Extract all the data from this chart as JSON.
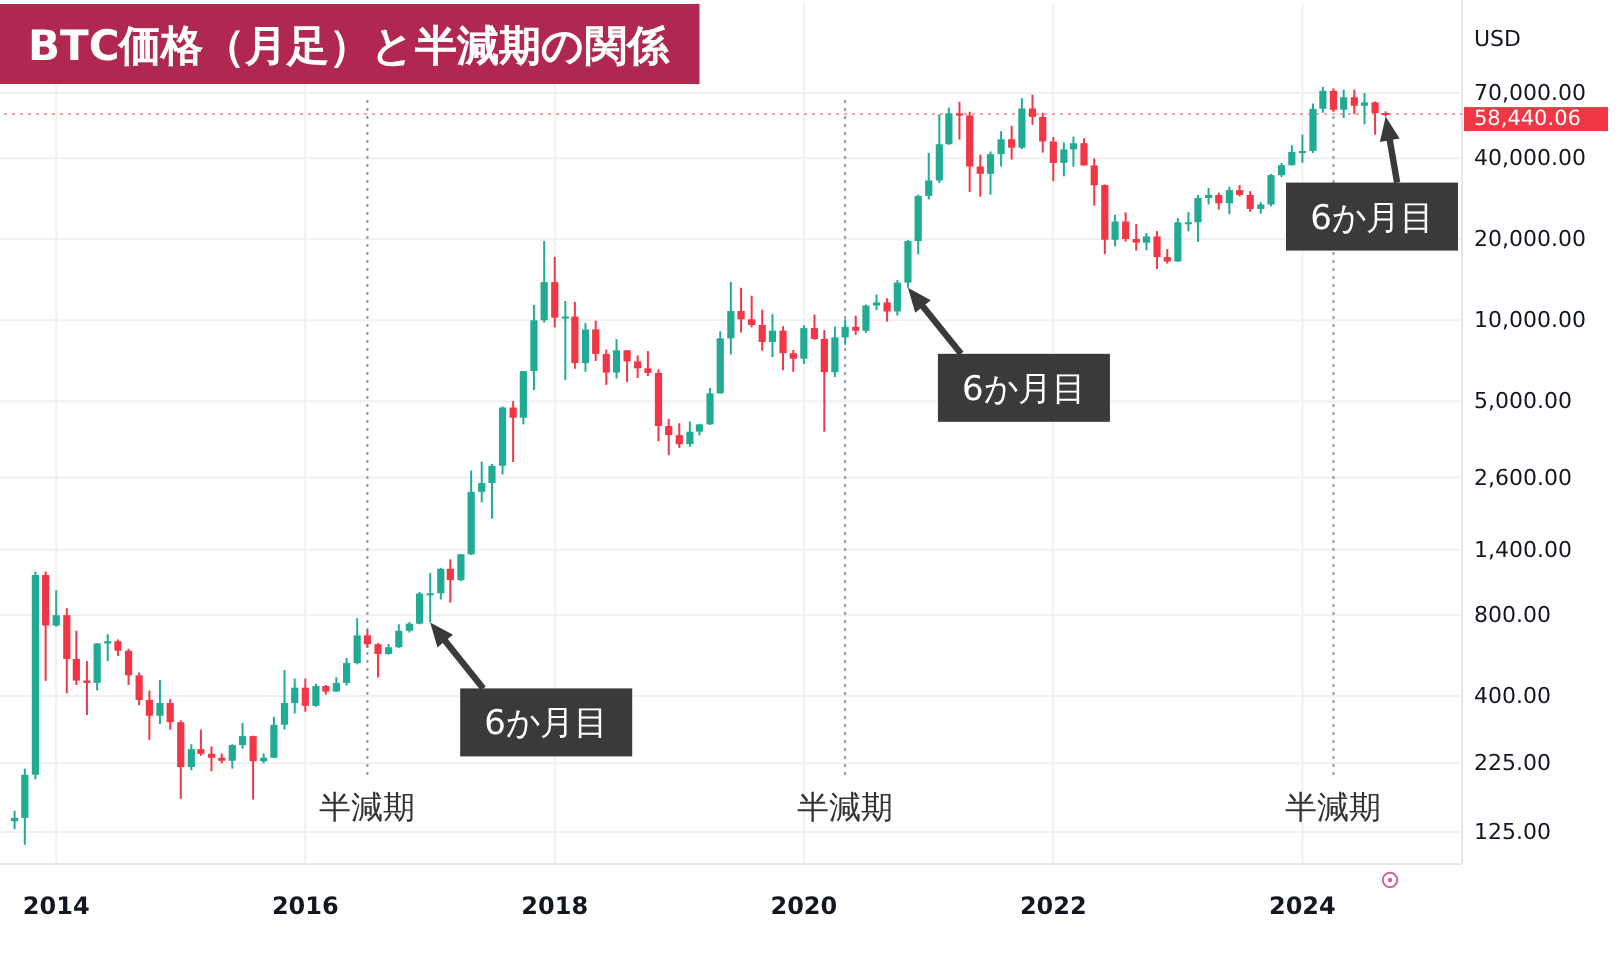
{
  "chart_data": {
    "type": "candlestick",
    "title": "BTC価格（月足）と半減期の関係",
    "ylabel": "USD",
    "x": [
      "2013-09",
      "2013-10",
      "2013-11",
      "2013-12",
      "2014-01",
      "2014-02",
      "2014-03",
      "2014-04",
      "2014-05",
      "2014-06",
      "2014-07",
      "2014-08",
      "2014-09",
      "2014-10",
      "2014-11",
      "2014-12",
      "2015-01",
      "2015-02",
      "2015-03",
      "2015-04",
      "2015-05",
      "2015-06",
      "2015-07",
      "2015-08",
      "2015-09",
      "2015-10",
      "2015-11",
      "2015-12",
      "2016-01",
      "2016-02",
      "2016-03",
      "2016-04",
      "2016-05",
      "2016-06",
      "2016-07",
      "2016-08",
      "2016-09",
      "2016-10",
      "2016-11",
      "2016-12",
      "2017-01",
      "2017-02",
      "2017-03",
      "2017-04",
      "2017-05",
      "2017-06",
      "2017-07",
      "2017-08",
      "2017-09",
      "2017-10",
      "2017-11",
      "2017-12",
      "2018-01",
      "2018-02",
      "2018-03",
      "2018-04",
      "2018-05",
      "2018-06",
      "2018-07",
      "2018-08",
      "2018-09",
      "2018-10",
      "2018-11",
      "2018-12",
      "2019-01",
      "2019-02",
      "2019-03",
      "2019-04",
      "2019-05",
      "2019-06",
      "2019-07",
      "2019-08",
      "2019-09",
      "2019-10",
      "2019-11",
      "2019-12",
      "2020-01",
      "2020-02",
      "2020-03",
      "2020-04",
      "2020-05",
      "2020-06",
      "2020-07",
      "2020-08",
      "2020-09",
      "2020-10",
      "2020-11",
      "2020-12",
      "2021-01",
      "2021-02",
      "2021-03",
      "2021-04",
      "2021-05",
      "2021-06",
      "2021-07",
      "2021-08",
      "2021-09",
      "2021-10",
      "2021-11",
      "2021-12",
      "2022-01",
      "2022-02",
      "2022-03",
      "2022-04",
      "2022-05",
      "2022-06",
      "2022-07",
      "2022-08",
      "2022-09",
      "2022-10",
      "2022-11",
      "2022-12",
      "2023-01",
      "2023-02",
      "2023-03",
      "2023-04",
      "2023-05",
      "2023-06",
      "2023-07",
      "2023-08",
      "2023-09",
      "2023-10",
      "2023-11",
      "2023-12",
      "2024-01",
      "2024-02",
      "2024-03",
      "2024-04",
      "2024-05",
      "2024-06",
      "2024-07",
      "2024-08",
      "2024-09"
    ],
    "ohlc": [
      [
        137,
        150,
        128,
        141
      ],
      [
        141,
        215,
        112,
        204
      ],
      [
        204,
        1163,
        196,
        1129
      ],
      [
        1129,
        1163,
        456,
        732
      ],
      [
        732,
        990,
        725,
        800
      ],
      [
        800,
        850,
        410,
        550
      ],
      [
        550,
        700,
        440,
        457
      ],
      [
        457,
        540,
        340,
        448
      ],
      [
        448,
        630,
        420,
        628
      ],
      [
        628,
        680,
        540,
        640
      ],
      [
        640,
        650,
        565,
        590
      ],
      [
        590,
        600,
        440,
        478
      ],
      [
        478,
        490,
        370,
        387
      ],
      [
        387,
        420,
        275,
        338
      ],
      [
        338,
        460,
        315,
        377
      ],
      [
        377,
        390,
        300,
        320
      ],
      [
        320,
        325,
        166,
        218
      ],
      [
        218,
        265,
        212,
        254
      ],
      [
        254,
        300,
        240,
        244
      ],
      [
        244,
        260,
        210,
        236
      ],
      [
        236,
        245,
        225,
        230
      ],
      [
        230,
        265,
        215,
        263
      ],
      [
        263,
        318,
        255,
        284
      ],
      [
        284,
        285,
        165,
        229
      ],
      [
        229,
        245,
        225,
        236
      ],
      [
        236,
        335,
        235,
        313
      ],
      [
        313,
        500,
        300,
        377
      ],
      [
        377,
        465,
        345,
        430
      ],
      [
        430,
        465,
        350,
        368
      ],
      [
        368,
        445,
        365,
        436
      ],
      [
        436,
        440,
        405,
        416
      ],
      [
        416,
        470,
        415,
        448
      ],
      [
        448,
        555,
        438,
        531
      ],
      [
        531,
        780,
        525,
        673
      ],
      [
        673,
        705,
        605,
        624
      ],
      [
        624,
        630,
        470,
        574
      ],
      [
        574,
        625,
        570,
        608
      ],
      [
        608,
        740,
        605,
        700
      ],
      [
        700,
        755,
        690,
        744
      ],
      [
        744,
        975,
        740,
        963
      ],
      [
        963,
        1150,
        752,
        965
      ],
      [
        965,
        1200,
        915,
        1190
      ],
      [
        1190,
        1290,
        890,
        1080
      ],
      [
        1080,
        1350,
        1070,
        1348
      ],
      [
        1348,
        2760,
        1340,
        2300
      ],
      [
        2300,
        2980,
        2100,
        2480
      ],
      [
        2480,
        2920,
        1830,
        2875
      ],
      [
        2875,
        4780,
        2670,
        4735
      ],
      [
        4735,
        5000,
        2970,
        4340
      ],
      [
        4340,
        6480,
        4100,
        6470
      ],
      [
        6470,
        11400,
        5500,
        10000
      ],
      [
        10000,
        19700,
        9800,
        13860
      ],
      [
        13860,
        17200,
        9400,
        10220
      ],
      [
        10220,
        11790,
        6000,
        10320
      ],
      [
        10320,
        11700,
        6600,
        6930
      ],
      [
        6930,
        9760,
        6430,
        9240
      ],
      [
        9240,
        9960,
        7050,
        7490
      ],
      [
        7490,
        7770,
        5750,
        6390
      ],
      [
        6390,
        8500,
        6070,
        7730
      ],
      [
        7730,
        7750,
        5880,
        7030
      ],
      [
        7030,
        7400,
        6100,
        6625
      ],
      [
        6625,
        7680,
        6200,
        6370
      ],
      [
        6370,
        6570,
        3550,
        4040
      ],
      [
        4040,
        4300,
        3150,
        3740
      ],
      [
        3740,
        4140,
        3350,
        3460
      ],
      [
        3460,
        4200,
        3380,
        3850
      ],
      [
        3850,
        4120,
        3730,
        4100
      ],
      [
        4100,
        5600,
        4080,
        5350
      ],
      [
        5350,
        9100,
        5330,
        8560
      ],
      [
        8560,
        13880,
        7460,
        10820
      ],
      [
        10820,
        13200,
        9000,
        10080
      ],
      [
        10080,
        12340,
        9400,
        9600
      ],
      [
        9600,
        10950,
        7700,
        8300
      ],
      [
        8300,
        10540,
        7300,
        9150
      ],
      [
        9150,
        9500,
        6520,
        7540
      ],
      [
        7540,
        7750,
        6430,
        7190
      ],
      [
        7190,
        9580,
        6870,
        9350
      ],
      [
        9350,
        10500,
        8450,
        8520
      ],
      [
        8520,
        9190,
        3850,
        6410
      ],
      [
        6410,
        9470,
        6150,
        8630
      ],
      [
        8630,
        10070,
        8100,
        9450
      ],
      [
        9450,
        10400,
        8830,
        9140
      ],
      [
        9140,
        11450,
        8970,
        11340
      ],
      [
        11340,
        12470,
        10900,
        11650
      ],
      [
        11650,
        12070,
        9880,
        10780
      ],
      [
        10780,
        14100,
        10400,
        13800
      ],
      [
        13800,
        19900,
        13200,
        19700
      ],
      [
        19700,
        29300,
        17600,
        28990
      ],
      [
        28990,
        41950,
        28130,
        33110
      ],
      [
        33110,
        58350,
        32400,
        45140
      ],
      [
        45140,
        61780,
        45000,
        58800
      ],
      [
        58800,
        64900,
        47000,
        57720
      ],
      [
        57720,
        59600,
        30000,
        37300
      ],
      [
        37300,
        41300,
        28800,
        35040
      ],
      [
        35040,
        42400,
        29300,
        41460
      ],
      [
        41460,
        50500,
        37300,
        47100
      ],
      [
        47100,
        52900,
        39600,
        43820
      ],
      [
        43820,
        67000,
        43300,
        61300
      ],
      [
        61300,
        69000,
        53300,
        57000
      ],
      [
        57000,
        59100,
        42000,
        46200
      ],
      [
        46200,
        47990,
        32900,
        38480
      ],
      [
        38480,
        45800,
        34300,
        43190
      ],
      [
        43190,
        48200,
        37200,
        45540
      ],
      [
        45540,
        47450,
        37600,
        37640
      ],
      [
        37640,
        40000,
        26700,
        31800
      ],
      [
        31800,
        31990,
        17600,
        19920
      ],
      [
        19920,
        24670,
        18800,
        23290
      ],
      [
        23290,
        25200,
        19600,
        20050
      ],
      [
        20050,
        22800,
        18150,
        19430
      ],
      [
        19430,
        21100,
        18200,
        20490
      ],
      [
        20490,
        21450,
        15500,
        17170
      ],
      [
        17170,
        18400,
        16250,
        16540
      ],
      [
        16540,
        23950,
        16500,
        23130
      ],
      [
        23130,
        25250,
        21400,
        23140
      ],
      [
        23140,
        29200,
        19550,
        28480
      ],
      [
        28480,
        31000,
        26950,
        29230
      ],
      [
        29230,
        29820,
        25800,
        27220
      ],
      [
        27220,
        31400,
        24800,
        30470
      ],
      [
        30470,
        31800,
        28860,
        29230
      ],
      [
        29230,
        30200,
        25300,
        25940
      ],
      [
        25940,
        27490,
        24900,
        26960
      ],
      [
        26960,
        35000,
        26550,
        34640
      ],
      [
        34640,
        38450,
        34100,
        37720
      ],
      [
        37720,
        44750,
        37600,
        42280
      ],
      [
        42280,
        48970,
        38500,
        42580
      ],
      [
        42580,
        64000,
        41900,
        61130
      ],
      [
        61130,
        73800,
        59100,
        71300
      ],
      [
        71300,
        72800,
        59600,
        60640
      ],
      [
        60640,
        71950,
        56500,
        67500
      ],
      [
        67500,
        71990,
        58400,
        62760
      ],
      [
        62760,
        70000,
        53500,
        64610
      ],
      [
        64610,
        65100,
        49000,
        58970
      ],
      [
        58970,
        59800,
        57200,
        58440.06
      ]
    ],
    "colors": [
      "#22ab94",
      "#22ab94",
      "#22ab94",
      "#f23645",
      "#22ab94",
      "#f23645",
      "#f23645",
      "#f23645",
      "#22ab94",
      "#22ab94",
      "#f23645",
      "#f23645",
      "#f23645",
      "#f23645",
      "#22ab94",
      "#f23645",
      "#f23645",
      "#22ab94",
      "#f23645",
      "#f23645",
      "#f23645",
      "#22ab94",
      "#22ab94",
      "#f23645",
      "#22ab94",
      "#22ab94",
      "#22ab94",
      "#22ab94",
      "#f23645",
      "#22ab94",
      "#f23645",
      "#22ab94",
      "#22ab94",
      "#22ab94",
      "#f23645",
      "#f23645",
      "#22ab94",
      "#22ab94",
      "#22ab94",
      "#22ab94",
      "#22ab94",
      "#22ab94",
      "#f23645",
      "#22ab94",
      "#22ab94",
      "#22ab94",
      "#22ab94",
      "#22ab94",
      "#f23645",
      "#22ab94",
      "#22ab94",
      "#22ab94",
      "#f23645",
      "#22ab94",
      "#f23645",
      "#22ab94",
      "#f23645",
      "#f23645",
      "#22ab94",
      "#f23645",
      "#f23645",
      "#f23645",
      "#f23645",
      "#f23645",
      "#f23645",
      "#22ab94",
      "#22ab94",
      "#22ab94",
      "#22ab94",
      "#22ab94",
      "#f23645",
      "#f23645",
      "#f23645",
      "#22ab94",
      "#f23645",
      "#f23645",
      "#22ab94",
      "#f23645",
      "#f23645",
      "#22ab94",
      "#22ab94",
      "#f23645",
      "#22ab94",
      "#22ab94",
      "#f23645",
      "#22ab94",
      "#22ab94",
      "#22ab94",
      "#22ab94",
      "#22ab94",
      "#22ab94",
      "#f23645",
      "#f23645",
      "#f23645",
      "#22ab94",
      "#22ab94",
      "#f23645",
      "#22ab94",
      "#f23645",
      "#f23645",
      "#f23645",
      "#22ab94",
      "#22ab94",
      "#f23645",
      "#f23645",
      "#f23645",
      "#22ab94",
      "#f23645",
      "#f23645",
      "#22ab94",
      "#f23645",
      "#f23645",
      "#22ab94",
      "#22ab94",
      "#22ab94",
      "#22ab94",
      "#f23645",
      "#22ab94",
      "#f23645",
      "#f23645",
      "#22ab94",
      "#22ab94",
      "#22ab94",
      "#22ab94",
      "#22ab94",
      "#22ab94",
      "#22ab94",
      "#f23645",
      "#22ab94",
      "#f23645",
      "#22ab94",
      "#f23645",
      "#f23645"
    ],
    "xlim": [
      "2013-08",
      "2025-04"
    ],
    "ylim": [
      95,
      150000
    ],
    "log": true,
    "grid": true,
    "xticks": [
      "2014",
      "2016",
      "2018",
      "2020",
      "2022",
      "2024"
    ],
    "yticks": [
      {
        "value": 125,
        "label": "125.00"
      },
      {
        "value": 225,
        "label": "225.00"
      },
      {
        "value": 400,
        "label": "400.00"
      },
      {
        "value": 800,
        "label": "800.00"
      },
      {
        "value": 1400,
        "label": "1,400.00"
      },
      {
        "value": 2600,
        "label": "2,600.00"
      },
      {
        "value": 5000,
        "label": "5,000.00"
      },
      {
        "value": 10000,
        "label": "10,000.00"
      },
      {
        "value": 20000,
        "label": "20,000.00"
      },
      {
        "value": 40000,
        "label": "40,000.00"
      },
      {
        "value": 70000,
        "label": "70,000.00"
      }
    ],
    "ref_lines": [
      {
        "axis": "x",
        "value": "2016-07",
        "label": "半減期",
        "color": "#9598a1",
        "line_style": "dotted"
      },
      {
        "axis": "x",
        "value": "2020-05",
        "label": "半減期",
        "color": "#9598a1",
        "line_style": "dotted"
      },
      {
        "axis": "x",
        "value": "2024-04",
        "label": "半減期",
        "color": "#9598a1",
        "line_style": "dotted"
      },
      {
        "axis": "y",
        "value": 58440.06,
        "label": "58,440.06",
        "color": "#f23645",
        "line_style": "dotted"
      }
    ],
    "annotations": [
      {
        "text": "6か月目",
        "x": "2017-01",
        "y": 752
      },
      {
        "text": "6か月目",
        "x": "2020-11",
        "y": 13200
      },
      {
        "text": "6か月目",
        "x": "2024-09",
        "y": 57200
      }
    ]
  }
}
